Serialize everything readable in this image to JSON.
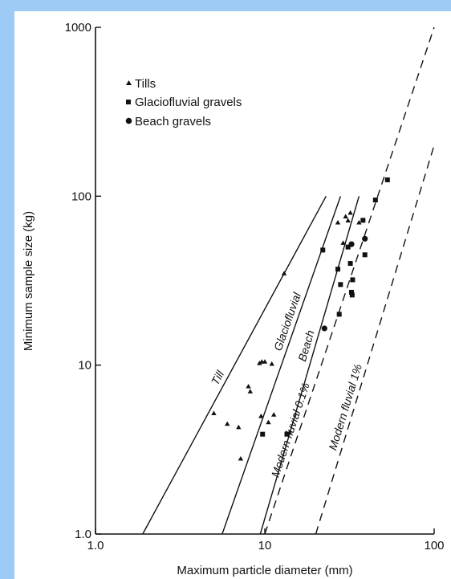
{
  "chart_data": {
    "type": "scatter",
    "x_scale": "log",
    "y_scale": "log",
    "xlim": [
      1,
      100
    ],
    "ylim": [
      1,
      1000
    ],
    "xlabel": "Maximum particle diameter (mm)",
    "ylabel": "Minimum sample size (kg)",
    "x_ticks": [
      "1.0",
      "10",
      "100"
    ],
    "y_ticks": [
      "1.0",
      "10",
      "100",
      "1000"
    ],
    "grid": false,
    "legend_position": "top-left",
    "legend": [
      {
        "name": "Tills",
        "marker": "triangle"
      },
      {
        "name": "Glaciofluvial gravels",
        "marker": "square"
      },
      {
        "name": "Beach gravels",
        "marker": "circle"
      }
    ],
    "series": [
      {
        "name": "Tills",
        "marker": "triangle",
        "points": [
          [
            5.0,
            5.2
          ],
          [
            6.0,
            4.5
          ],
          [
            7.0,
            4.3
          ],
          [
            7.2,
            2.8
          ],
          [
            8.0,
            7.5
          ],
          [
            8.2,
            7.0
          ],
          [
            9.3,
            10.3
          ],
          [
            9.6,
            10.5
          ],
          [
            10.0,
            10.5
          ],
          [
            9.5,
            5.0
          ],
          [
            10.5,
            4.6
          ],
          [
            11.0,
            10.2
          ],
          [
            11.3,
            5.1
          ],
          [
            13.0,
            35.0
          ],
          [
            14.0,
            4.0
          ],
          [
            27.0,
            70.0
          ],
          [
            30.0,
            76.0
          ],
          [
            32.0,
            80.0
          ],
          [
            31.0,
            72.0
          ],
          [
            36.0,
            70.0
          ],
          [
            29.0,
            53.0
          ]
        ]
      },
      {
        "name": "Glaciofluvial gravels",
        "marker": "square",
        "points": [
          [
            9.7,
            3.9
          ],
          [
            13.5,
            3.9
          ],
          [
            22.0,
            48.0
          ],
          [
            27.0,
            37.0
          ],
          [
            27.5,
            20.0
          ],
          [
            28.0,
            30.0
          ],
          [
            31.0,
            50.0
          ],
          [
            32.0,
            40.0
          ],
          [
            33.0,
            32.0
          ],
          [
            32.5,
            27.0
          ],
          [
            32.8,
            26.0
          ],
          [
            38.0,
            72.0
          ],
          [
            39.0,
            45.0
          ],
          [
            45.0,
            95.0
          ],
          [
            53.0,
            125.0
          ]
        ]
      },
      {
        "name": "Beach gravels",
        "marker": "circle",
        "points": [
          [
            22.5,
            16.5
          ],
          [
            32.5,
            52.0
          ],
          [
            39.0,
            56.0
          ]
        ]
      }
    ],
    "lines": [
      {
        "label": "Till",
        "style": "solid",
        "from": [
          1.9,
          1.0
        ],
        "to": [
          23.0,
          100.0
        ]
      },
      {
        "label": "Glaciofluvial",
        "style": "solid",
        "from": [
          5.6,
          1.0
        ],
        "to": [
          28.0,
          100.0
        ]
      },
      {
        "label": "Beach",
        "style": "solid",
        "from": [
          9.4,
          1.0
        ],
        "to": [
          36.0,
          100.0
        ]
      },
      {
        "label": "Modern fluvial 0.1%",
        "style": "dashed",
        "from": [
          10.0,
          1.0
        ],
        "to": [
          100.0,
          1000.0
        ]
      },
      {
        "label": "Modern fluvial 1%",
        "style": "dashed",
        "from": [
          20.0,
          1.0
        ],
        "to": [
          100.0,
          200.0
        ]
      }
    ]
  }
}
